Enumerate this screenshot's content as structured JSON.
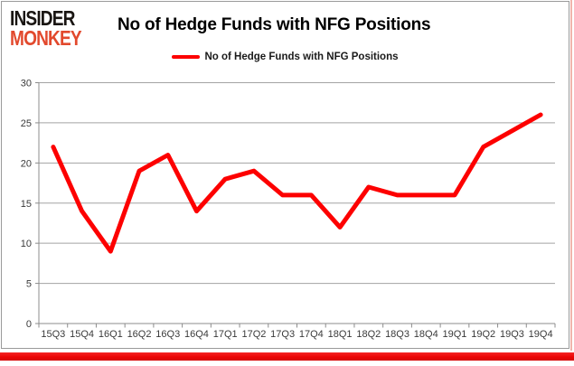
{
  "logo": {
    "line1": "INSIDER",
    "line2": "MONKEY"
  },
  "header": {
    "title": "No of Hedge Funds with NFG Positions"
  },
  "legend": {
    "label": "No of Hedge Funds with NFG Positions"
  },
  "colors": {
    "line_red": "#fd0000",
    "logo_orange": "#e2492d",
    "gridline": "#a3a3a3",
    "axis": "#8c8c8c",
    "panel_border": "#9a9a9a",
    "bottom_bar_red": "#ec0404"
  },
  "chart_data": {
    "type": "line",
    "title": "No of Hedge Funds with NFG Positions",
    "categories": [
      "15Q3",
      "15Q4",
      "16Q1",
      "16Q2",
      "16Q3",
      "16Q4",
      "17Q1",
      "17Q2",
      "17Q3",
      "17Q4",
      "18Q1",
      "18Q2",
      "18Q3",
      "18Q4",
      "19Q1",
      "19Q2",
      "19Q3",
      "19Q4"
    ],
    "series": [
      {
        "name": "No of Hedge Funds with NFG Positions",
        "values": [
          22,
          14,
          9,
          19,
          21,
          14,
          18,
          19,
          16,
          16,
          12,
          17,
          16,
          16,
          16,
          22,
          24,
          26
        ]
      }
    ],
    "xlabel": "",
    "ylabel": "",
    "ylim": [
      0,
      30
    ],
    "yticks": [
      0,
      5,
      10,
      15,
      20,
      25,
      30
    ],
    "grid": true,
    "legend_position": "top"
  }
}
